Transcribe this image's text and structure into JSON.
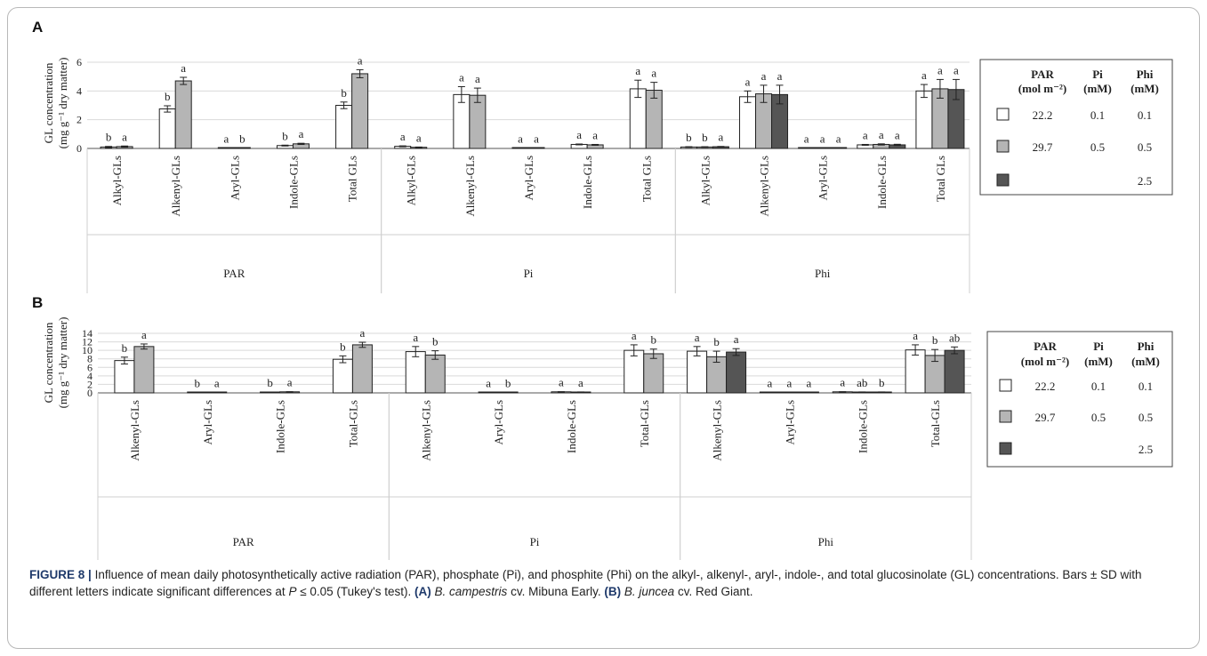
{
  "panels": [
    {
      "label": "A",
      "ylabel_line1": "GL concentration",
      "ylabel_line2": "(mg g⁻¹ dry matter)",
      "legend": {
        "headers": [
          "PAR",
          "(mol m⁻²)",
          "Pi",
          "(mM)",
          "Phi",
          "(mM)"
        ],
        "rows": [
          {
            "color": "#ffffff",
            "par": "22.2",
            "pi": "0.1",
            "phi": "0.1"
          },
          {
            "color": "#b5b5b5",
            "par": "29.7",
            "pi": "0.5",
            "phi": "0.5"
          },
          {
            "color": "#555555",
            "par": "",
            "pi": "",
            "phi": "2.5"
          }
        ]
      }
    },
    {
      "label": "B",
      "ylabel_line1": "GL concentration",
      "ylabel_line2": "(mg g⁻¹ dry matter)",
      "legend": {
        "headers": [
          "PAR",
          "(mol m⁻²)",
          "Pi",
          "(mM)",
          "Phi",
          "(mM)"
        ],
        "rows": [
          {
            "color": "#ffffff",
            "par": "22.2",
            "pi": "0.1",
            "phi": "0.1"
          },
          {
            "color": "#b5b5b5",
            "par": "29.7",
            "pi": "0.5",
            "phi": "0.5"
          },
          {
            "color": "#555555",
            "par": "",
            "pi": "",
            "phi": "2.5"
          }
        ]
      }
    }
  ],
  "chart_data": [
    {
      "type": "bar",
      "ylim": [
        0,
        6
      ],
      "yticks": [
        0,
        2,
        4,
        6
      ],
      "colors": [
        "#ffffff",
        "#b5b5b5",
        "#555555"
      ],
      "groups": [
        {
          "name": "PAR",
          "categories": [
            {
              "label": "Alkyl-GLs",
              "values": [
                0.1,
                0.13
              ],
              "sd": [
                0.04,
                0.04
              ],
              "letters": [
                "b",
                "a"
              ]
            },
            {
              "label": "Alkenyl-GLs",
              "values": [
                2.75,
                4.7
              ],
              "sd": [
                0.22,
                0.25
              ],
              "letters": [
                "b",
                "a"
              ]
            },
            {
              "label": "Aryl-GLs",
              "values": [
                0.02,
                0.02
              ],
              "sd": [
                0.01,
                0.01
              ],
              "letters": [
                "a",
                "b"
              ]
            },
            {
              "label": "Indole-GLs",
              "values": [
                0.2,
                0.32
              ],
              "sd": [
                0.03,
                0.04
              ],
              "letters": [
                "b",
                "a"
              ]
            },
            {
              "label": "Total GLs",
              "values": [
                3.0,
                5.2
              ],
              "sd": [
                0.23,
                0.28
              ],
              "letters": [
                "b",
                "a"
              ]
            }
          ]
        },
        {
          "name": "Pi",
          "categories": [
            {
              "label": "Alkyl-GLs",
              "values": [
                0.15,
                0.08
              ],
              "sd": [
                0.03,
                0.02
              ],
              "letters": [
                "a",
                "a"
              ]
            },
            {
              "label": "Alkenyl-GLs",
              "values": [
                3.75,
                3.7
              ],
              "sd": [
                0.55,
                0.5
              ],
              "letters": [
                "a",
                "a"
              ]
            },
            {
              "label": "Aryl-GLs",
              "values": [
                0.02,
                0.02
              ],
              "sd": [
                0.01,
                0.01
              ],
              "letters": [
                "a",
                "a"
              ]
            },
            {
              "label": "Indole-GLs",
              "values": [
                0.28,
                0.25
              ],
              "sd": [
                0.03,
                0.03
              ],
              "letters": [
                "a",
                "a"
              ]
            },
            {
              "label": "Total GLs",
              "values": [
                4.15,
                4.05
              ],
              "sd": [
                0.6,
                0.55
              ],
              "letters": [
                "a",
                "a"
              ]
            }
          ]
        },
        {
          "name": "Phi",
          "categories": [
            {
              "label": "Alkyl-GLs",
              "values": [
                0.1,
                0.1,
                0.12
              ],
              "sd": [
                0.02,
                0.02,
                0.02
              ],
              "letters": [
                "b",
                "b",
                "a"
              ]
            },
            {
              "label": "Alkenyl-GLs",
              "values": [
                3.6,
                3.8,
                3.75
              ],
              "sd": [
                0.4,
                0.6,
                0.65
              ],
              "letters": [
                "a",
                "a",
                "a"
              ]
            },
            {
              "label": "Aryl-GLs",
              "values": [
                0.02,
                0.02,
                0.02
              ],
              "sd": [
                0.01,
                0.01,
                0.01
              ],
              "letters": [
                "a",
                "a",
                "a"
              ]
            },
            {
              "label": "Indole-GLs",
              "values": [
                0.25,
                0.28,
                0.25
              ],
              "sd": [
                0.03,
                0.04,
                0.04
              ],
              "letters": [
                "a",
                "a",
                "a"
              ]
            },
            {
              "label": "Total GLs",
              "values": [
                4.0,
                4.15,
                4.1
              ],
              "sd": [
                0.45,
                0.65,
                0.7
              ],
              "letters": [
                "a",
                "a",
                "a"
              ]
            }
          ]
        }
      ]
    },
    {
      "type": "bar",
      "ylim": [
        0,
        14
      ],
      "yticks": [
        0,
        2,
        4,
        6,
        8,
        10,
        12,
        14
      ],
      "colors": [
        "#ffffff",
        "#b5b5b5",
        "#555555"
      ],
      "groups": [
        {
          "name": "PAR",
          "categories": [
            {
              "label": "Alkenyl-GLs",
              "values": [
                7.6,
                10.9
              ],
              "sd": [
                0.8,
                0.6
              ],
              "letters": [
                "b",
                "a"
              ]
            },
            {
              "label": "Aryl-GLs",
              "values": [
                0.05,
                0.05
              ],
              "sd": [
                0.02,
                0.02
              ],
              "letters": [
                "b",
                "a"
              ]
            },
            {
              "label": "Indole-GLs",
              "values": [
                0.15,
                0.25
              ],
              "sd": [
                0.03,
                0.03
              ],
              "letters": [
                "b",
                "a"
              ]
            },
            {
              "label": "Total-GLs",
              "values": [
                7.9,
                11.3
              ],
              "sd": [
                0.8,
                0.6
              ],
              "letters": [
                "b",
                "a"
              ]
            }
          ]
        },
        {
          "name": "Pi",
          "categories": [
            {
              "label": "Alkenyl-GLs",
              "values": [
                9.7,
                8.9
              ],
              "sd": [
                1.2,
                1.0
              ],
              "letters": [
                "a",
                "b"
              ]
            },
            {
              "label": "Aryl-GLs",
              "values": [
                0.05,
                0.05
              ],
              "sd": [
                0.02,
                0.02
              ],
              "letters": [
                "a",
                "b"
              ]
            },
            {
              "label": "Indole-GLs",
              "values": [
                0.25,
                0.2
              ],
              "sd": [
                0.03,
                0.03
              ],
              "letters": [
                "a",
                "a"
              ]
            },
            {
              "label": "Total-GLs",
              "values": [
                10.0,
                9.2
              ],
              "sd": [
                1.3,
                1.1
              ],
              "letters": [
                "a",
                "b"
              ]
            }
          ]
        },
        {
          "name": "Phi",
          "categories": [
            {
              "label": "Alkenyl-GLs",
              "values": [
                9.8,
                8.5,
                9.6
              ],
              "sd": [
                1.1,
                1.3,
                0.8
              ],
              "letters": [
                "a",
                "b",
                "a"
              ]
            },
            {
              "label": "Aryl-GLs",
              "values": [
                0.05,
                0.05,
                0.05
              ],
              "sd": [
                0.02,
                0.02,
                0.02
              ],
              "letters": [
                "a",
                "a",
                "a"
              ]
            },
            {
              "label": "Indole-GLs",
              "values": [
                0.25,
                0.2,
                0.2
              ],
              "sd": [
                0.03,
                0.03,
                0.03
              ],
              "letters": [
                "a",
                "ab",
                "b"
              ]
            },
            {
              "label": "Total-GLs",
              "values": [
                10.1,
                8.8,
                10.0
              ],
              "sd": [
                1.2,
                1.4,
                0.8
              ],
              "letters": [
                "a",
                "b",
                "ab"
              ]
            }
          ]
        }
      ]
    }
  ],
  "caption": {
    "figure_label": "FIGURE 8 |",
    "text": "Influence of mean daily photosynthetically active radiation (PAR), phosphate (Pi), and phosphite (Phi) on the alkyl-, alkenyl-, aryl-, indole-, and total glucosinolate (GL) concentrations. Bars ± SD with different letters indicate significant differences at",
    "p_symbol": "P",
    "p_rest": "≤ 0.05 (Tukey's test).",
    "a_label": "(A)",
    "a_species": "B. campestris",
    "a_cultivar": "cv. Mibuna Early.",
    "b_label": "(B)",
    "b_species": "B. juncea",
    "b_cultivar": "cv. Red Giant."
  }
}
